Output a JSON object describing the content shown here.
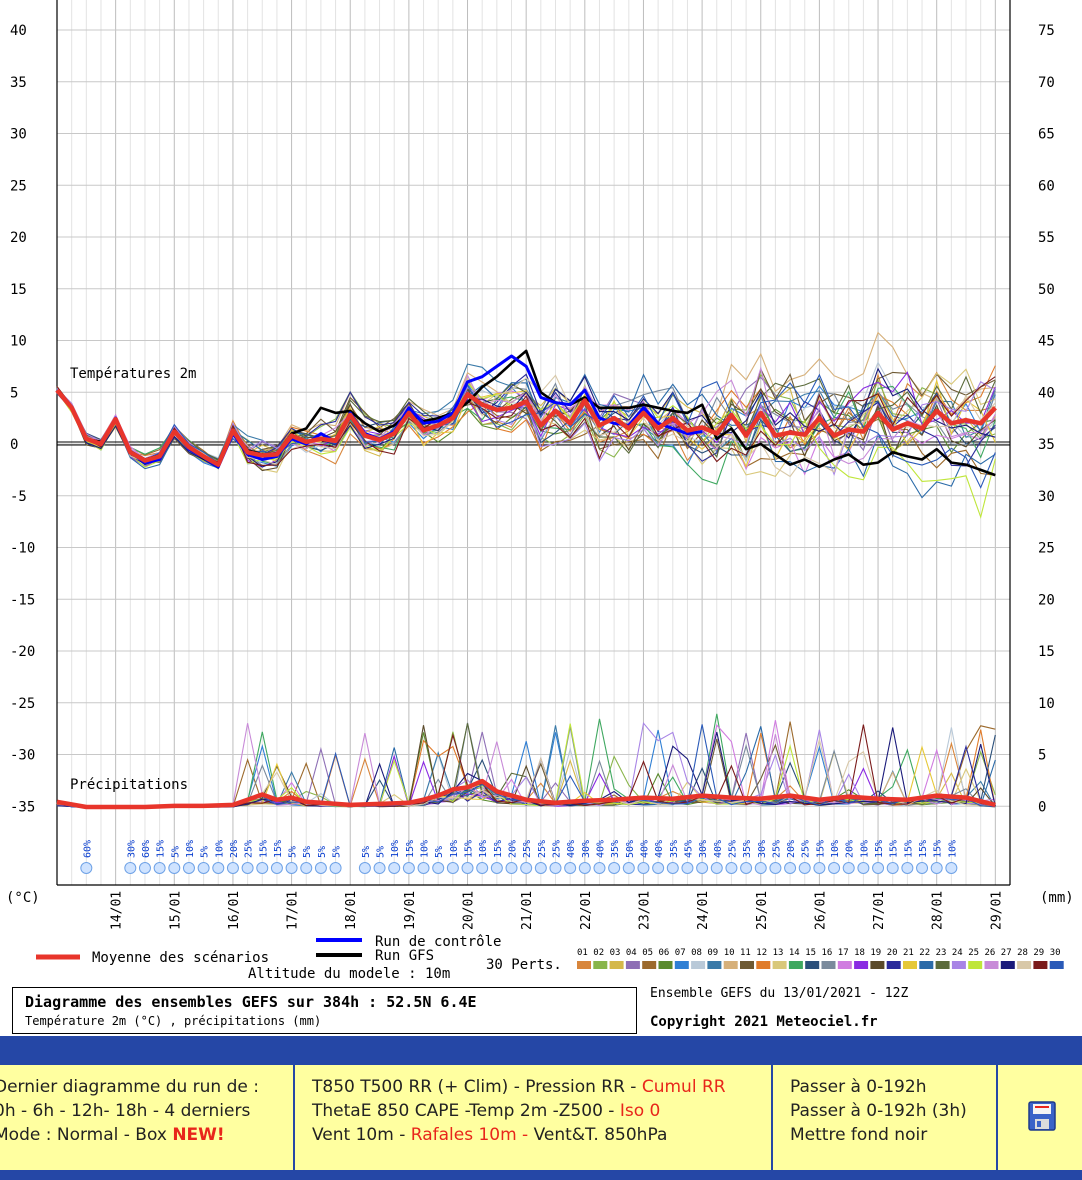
{
  "chart_data": {
    "type": "line",
    "left_axis": {
      "unit_label": "(°C)",
      "ticks": [
        40,
        35,
        30,
        25,
        20,
        15,
        10,
        5,
        0,
        -5,
        -10,
        -15,
        -20,
        -25,
        -30,
        -35
      ],
      "range": [
        -35,
        40
      ]
    },
    "right_axis": {
      "unit_label": "(mm)",
      "ticks": [
        75,
        70,
        65,
        60,
        55,
        50,
        45,
        40,
        35,
        30,
        25,
        20,
        15,
        10,
        5,
        0
      ],
      "range": [
        0,
        75
      ]
    },
    "x_dates": [
      "14/01",
      "15/01",
      "16/01",
      "17/01",
      "18/01",
      "19/01",
      "20/01",
      "21/01",
      "22/01",
      "23/01",
      "24/01",
      "25/01",
      "26/01",
      "27/01",
      "28/01",
      "29/01"
    ],
    "panel_labels": {
      "temperature": "Températures 2m",
      "precip": "Précipitations"
    },
    "snow_probabilities": [
      {
        "day": 13.5,
        "pct": "60%"
      },
      {
        "day": 14.25,
        "pct": "30%"
      },
      {
        "day": 14.5,
        "pct": "60%"
      },
      {
        "day": 14.75,
        "pct": "15%"
      },
      {
        "day": 15.0,
        "pct": "5%"
      },
      {
        "day": 15.25,
        "pct": "10%"
      },
      {
        "day": 15.5,
        "pct": "5%"
      },
      {
        "day": 15.75,
        "pct": "10%"
      },
      {
        "day": 16.0,
        "pct": "20%"
      },
      {
        "day": 16.25,
        "pct": "25%"
      },
      {
        "day": 16.5,
        "pct": "15%"
      },
      {
        "day": 16.75,
        "pct": "15%"
      },
      {
        "day": 17.0,
        "pct": "5%"
      },
      {
        "day": 17.25,
        "pct": "5%"
      },
      {
        "day": 17.5,
        "pct": "5%"
      },
      {
        "day": 17.75,
        "pct": "5%"
      },
      {
        "day": 18.25,
        "pct": "5%"
      },
      {
        "day": 18.5,
        "pct": "5%"
      },
      {
        "day": 18.75,
        "pct": "10%"
      },
      {
        "day": 19.0,
        "pct": "15%"
      },
      {
        "day": 19.25,
        "pct": "10%"
      },
      {
        "day": 19.5,
        "pct": "5%"
      },
      {
        "day": 19.75,
        "pct": "10%"
      },
      {
        "day": 20.0,
        "pct": "15%"
      },
      {
        "day": 20.25,
        "pct": "10%"
      },
      {
        "day": 20.5,
        "pct": "15%"
      },
      {
        "day": 20.75,
        "pct": "20%"
      },
      {
        "day": 21.0,
        "pct": "25%"
      },
      {
        "day": 21.25,
        "pct": "25%"
      },
      {
        "day": 21.5,
        "pct": "25%"
      },
      {
        "day": 21.75,
        "pct": "40%"
      },
      {
        "day": 22.0,
        "pct": "30%"
      },
      {
        "day": 22.25,
        "pct": "40%"
      },
      {
        "day": 22.5,
        "pct": "35%"
      },
      {
        "day": 22.75,
        "pct": "50%"
      },
      {
        "day": 23.0,
        "pct": "40%"
      },
      {
        "day": 23.25,
        "pct": "40%"
      },
      {
        "day": 23.5,
        "pct": "35%"
      },
      {
        "day": 23.75,
        "pct": "45%"
      },
      {
        "day": 24.0,
        "pct": "30%"
      },
      {
        "day": 24.25,
        "pct": "40%"
      },
      {
        "day": 24.5,
        "pct": "25%"
      },
      {
        "day": 24.75,
        "pct": "35%"
      },
      {
        "day": 25.0,
        "pct": "30%"
      },
      {
        "day": 25.25,
        "pct": "25%"
      },
      {
        "day": 25.5,
        "pct": "20%"
      },
      {
        "day": 25.75,
        "pct": "25%"
      },
      {
        "day": 26.0,
        "pct": "15%"
      },
      {
        "day": 26.25,
        "pct": "10%"
      },
      {
        "day": 26.5,
        "pct": "20%"
      },
      {
        "day": 26.75,
        "pct": "10%"
      },
      {
        "day": 27.0,
        "pct": "15%"
      },
      {
        "day": 27.25,
        "pct": "15%"
      },
      {
        "day": 27.5,
        "pct": "15%"
      },
      {
        "day": 27.75,
        "pct": "15%"
      },
      {
        "day": 28.0,
        "pct": "15%"
      },
      {
        "day": 28.25,
        "pct": "10%"
      }
    ],
    "legend": {
      "mean": "Moyenne des scénarios",
      "control": "Run de contrôle",
      "gfs": "Run GFS",
      "perts": "30 Perts.",
      "altitude": "Altitude du modele : 10m"
    },
    "member_labels": [
      "01",
      "02",
      "03",
      "04",
      "05",
      "06",
      "07",
      "08",
      "09",
      "10",
      "11",
      "12",
      "13",
      "14",
      "15",
      "16",
      "17",
      "18",
      "19",
      "20",
      "21",
      "22",
      "23",
      "24",
      "25",
      "26",
      "27",
      "28",
      "29",
      "30"
    ],
    "member_colors": [
      "#d8863c",
      "#89b54a",
      "#d4b84a",
      "#8e6fb5",
      "#9c6a2c",
      "#5b8a2e",
      "#2f7fd4",
      "#b9c9d8",
      "#3a7aa8",
      "#d6b07a",
      "#6e5a34",
      "#e07b2a",
      "#d9c87a",
      "#3fa860",
      "#2a4f7a",
      "#7a8a9c",
      "#d07ce0",
      "#8a2be2",
      "#5a4a2a",
      "#2a2a9a",
      "#e6c838",
      "#2a6aa8",
      "#5a6a3a",
      "#a884e6",
      "#bfe63a",
      "#c88ad8",
      "#1a1a7a",
      "#d8c8a8",
      "#7a1a1a",
      "#2a5ab8"
    ],
    "mean_series_color": "#e8352b",
    "control_color": "#0000ff",
    "gfs_color": "#000000",
    "mean_temp": {
      "x": [
        13.0,
        13.25,
        13.5,
        13.75,
        14.0,
        14.25,
        14.5,
        14.75,
        15.0,
        15.25,
        15.5,
        15.75,
        16.0,
        16.25,
        16.5,
        16.75,
        17.0,
        17.25,
        17.5,
        17.75,
        18.0,
        18.25,
        18.5,
        18.75,
        19.0,
        19.25,
        19.5,
        19.75,
        20.0,
        20.25,
        20.5,
        20.75,
        21.0,
        21.25,
        21.5,
        21.75,
        22.0,
        22.25,
        22.5,
        22.75,
        23.0,
        23.25,
        23.5,
        23.75,
        24.0,
        24.25,
        24.5,
        24.75,
        25.0,
        25.25,
        25.5,
        25.75,
        26.0,
        26.25,
        26.5,
        26.75,
        27.0,
        27.25,
        27.5,
        27.75,
        28.0,
        28.25,
        28.5,
        28.75,
        29.0
      ],
      "y": [
        5.2,
        3.5,
        0.5,
        0,
        2.4,
        -0.8,
        -1.6,
        -1.2,
        1.2,
        -0.3,
        -1.2,
        -2.0,
        1.3,
        -0.8,
        -1.1,
        -1.0,
        0.8,
        0.2,
        0.5,
        0.3,
        2.8,
        0.8,
        0.4,
        1.0,
        3.0,
        1.3,
        1.8,
        2.5,
        4.8,
        3.8,
        3.3,
        3.5,
        4.1,
        1.8,
        3.2,
        2.0,
        4.2,
        1.8,
        2.5,
        1.5,
        3.0,
        1.5,
        2.5,
        1.3,
        1.6,
        1.0,
        2.8,
        0.8,
        3.0,
        0.8,
        1.1,
        0.9,
        2.5,
        0.8,
        1.4,
        1.2,
        3.0,
        1.4,
        2.0,
        1.5,
        3.2,
        2.0,
        2.3,
        2.0,
        3.5
      ]
    },
    "control_temp": {
      "x": [
        13.0,
        13.25,
        13.5,
        13.75,
        14.0,
        14.25,
        14.5,
        14.75,
        15.0,
        15.25,
        15.5,
        15.75,
        16.0,
        16.25,
        16.5,
        16.75,
        17.0,
        17.25,
        17.5,
        17.75,
        18.0,
        18.25,
        18.5,
        18.75,
        19.0,
        19.25,
        19.5,
        19.75,
        20.0,
        20.25,
        20.5,
        20.75,
        21.0,
        21.25,
        21.5,
        21.75,
        22.0,
        22.25,
        22.5,
        22.75,
        23.0,
        23.25,
        23.5,
        23.75,
        24.0
      ],
      "y": [
        5.2,
        3.6,
        0.5,
        0,
        2.5,
        -0.8,
        -1.8,
        -1.5,
        1.2,
        -0.5,
        -1.3,
        -2.2,
        1.0,
        -1.0,
        -1.5,
        -1.2,
        0.5,
        0,
        1.0,
        0.2,
        3.0,
        1.0,
        0.5,
        1.2,
        3.5,
        2.0,
        2.2,
        3.0,
        6.0,
        6.5,
        7.5,
        8.5,
        7.5,
        4.5,
        4.0,
        3.8,
        5.2,
        2.5,
        2.0,
        1.8,
        3.5,
        2.0,
        1.5,
        1.0,
        1.2
      ]
    },
    "gfs_temp": {
      "x": [
        13.0,
        13.25,
        13.5,
        13.75,
        14.0,
        14.25,
        14.5,
        14.75,
        15.0,
        15.25,
        15.5,
        15.75,
        16.0,
        16.25,
        16.5,
        16.75,
        17.0,
        17.25,
        17.5,
        17.75,
        18.0,
        18.25,
        18.5,
        18.75,
        19.0,
        19.25,
        19.5,
        19.75,
        20.0,
        20.25,
        20.5,
        20.75,
        21.0,
        21.25,
        21.5,
        21.75,
        22.0,
        22.25,
        22.5,
        22.75,
        23.0,
        23.25,
        23.5,
        23.75,
        24.0,
        24.25,
        24.5,
        24.75,
        25.0,
        25.25,
        25.5,
        25.75,
        26.0,
        26.25,
        26.5,
        26.75,
        27.0,
        27.25,
        27.5,
        27.75,
        28.0,
        28.25,
        28.5,
        28.75,
        29.0
      ],
      "y": [
        5.2,
        3.4,
        0.5,
        0.2,
        2.3,
        -0.7,
        -1.5,
        -1.1,
        1.3,
        -0.4,
        -1.4,
        -1.8,
        1.4,
        -0.6,
        -1.0,
        -0.9,
        1.0,
        1.5,
        3.5,
        3.0,
        3.2,
        2.0,
        1.2,
        1.8,
        3.0,
        2.2,
        2.5,
        3.0,
        4.0,
        5.5,
        6.5,
        7.8,
        9.0,
        5.0,
        4.0,
        3.8,
        4.5,
        3.5,
        3.5,
        3.5,
        3.8,
        3.5,
        3.2,
        3.0,
        3.8,
        0.5,
        1.5,
        -0.5,
        0,
        -1.0,
        -2.0,
        -1.5,
        -2.2,
        -1.5,
        -1.0,
        -2.0,
        -1.8,
        -0.8,
        -1.2,
        -1.5,
        -0.5,
        -1.8,
        -2.0,
        -2.5,
        -3.0
      ]
    },
    "mean_precip_mm": {
      "x": [
        13.0,
        13.5,
        14.0,
        14.5,
        15.0,
        15.5,
        16.0,
        16.25,
        16.5,
        16.75,
        17.0,
        17.25,
        17.5,
        18.0,
        18.5,
        19.0,
        19.25,
        19.5,
        19.75,
        20.0,
        20.25,
        20.5,
        20.75,
        21.0,
        21.5,
        22.0,
        22.5,
        23.0,
        23.5,
        24.0,
        24.5,
        25.0,
        25.5,
        26.0,
        26.5,
        27.0,
        27.5,
        28.0,
        28.5,
        29.0
      ],
      "y": [
        0.6,
        0.1,
        0.1,
        0.1,
        0.2,
        0.2,
        0.3,
        0.8,
        1.3,
        0.8,
        1.0,
        0.6,
        0.5,
        0.3,
        0.4,
        0.5,
        0.8,
        1.2,
        1.8,
        2.0,
        2.6,
        1.6,
        1.2,
        0.8,
        0.5,
        0.7,
        0.8,
        1.0,
        0.9,
        1.2,
        1.0,
        0.9,
        1.2,
        0.8,
        1.1,
        0.9,
        0.8,
        1.2,
        1.0,
        0.3
      ]
    }
  },
  "info": {
    "title": "Diagramme des ensembles GEFS sur 384h : 52.5N 6.4E",
    "subtitle": "Température 2m (°C) , précipitations (mm)",
    "run": "Ensemble GEFS du 13/01/2021 - 12Z",
    "copyright": "Copyright 2021 Meteociel.fr"
  },
  "nav": {
    "p1": {
      "l1": "Dernier diagramme du run de :",
      "l2": "0h - 6h - 12h- 18h - 4 derniers",
      "l3a": "Mode : Normal - Box ",
      "l3b": "NEW!"
    },
    "p2": {
      "l1a": "T850 T500 RR (+ Clim) - Pression RR - ",
      "l1b": "Cumul RR",
      "l2a": "ThetaE 850 CAPE -Temp 2m -Z500 - ",
      "l2b": "Iso 0",
      "l3a": "Vent 10m - ",
      "l3b": "Rafales 10m - ",
      "l3c": "Vent&T. 850hPa"
    },
    "p3": {
      "l1": "Passer à 0-192h",
      "l2": "Passer à 0-192h (3h)",
      "l3": "Mettre fond noir"
    },
    "save_icon": "floppy-disk-icon"
  }
}
